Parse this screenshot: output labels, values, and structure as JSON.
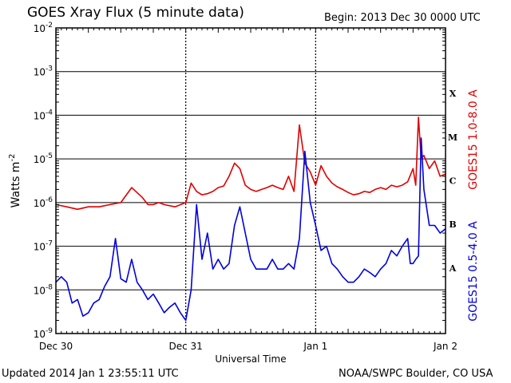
{
  "header": {
    "title": "GOES Xray Flux (5 minute data)",
    "begin": "Begin:  2013 Dec 30 0000 UTC"
  },
  "footer": {
    "updated": "Updated 2014 Jan  1 23:55:11 UTC",
    "credit": "NOAA/SWPC Boulder, CO USA"
  },
  "chart_data": {
    "type": "line",
    "xlabel": "Universal Time",
    "ylabel_base": "Watts m",
    "ylabel_exp": "-2",
    "y_scale": "log",
    "ylim": [
      1e-09,
      0.01
    ],
    "xlim": [
      0,
      72
    ],
    "x_unit": "hours since 2013 Dec 30 0000 UTC",
    "x_ticks": [
      {
        "value": 0,
        "label": "Dec 30"
      },
      {
        "value": 24,
        "label": "Dec 31"
      },
      {
        "value": 48,
        "label": "Jan 1"
      },
      {
        "value": 72,
        "label": "Jan 2"
      }
    ],
    "y_ticks": [
      {
        "exp": -9,
        "base": "10",
        "sup": "-9"
      },
      {
        "exp": -8,
        "base": "10",
        "sup": "-8"
      },
      {
        "exp": -7,
        "base": "10",
        "sup": "-7"
      },
      {
        "exp": -6,
        "base": "10",
        "sup": "-6"
      },
      {
        "exp": -5,
        "base": "10",
        "sup": "-5"
      },
      {
        "exp": -4,
        "base": "10",
        "sup": "-4"
      },
      {
        "exp": -3,
        "base": "10",
        "sup": "-3"
      },
      {
        "exp": -2,
        "base": "10",
        "sup": "-2"
      }
    ],
    "flare_classes": [
      {
        "label": "A",
        "exp": -7.5
      },
      {
        "label": "B",
        "exp": -6.5
      },
      {
        "label": "C",
        "exp": -5.5
      },
      {
        "label": "M",
        "exp": -4.5
      },
      {
        "label": "X",
        "exp": -3.5
      }
    ],
    "grid": "horizontal lines at each decade; dotted vertical lines at day boundaries",
    "series": [
      {
        "name": "GOES15 1.0-8.0 A",
        "color": "#e00000",
        "x": [
          0,
          2,
          4,
          6,
          8,
          10,
          12,
          14,
          16,
          17,
          18,
          19,
          20,
          22,
          24,
          25,
          26,
          27,
          28,
          29,
          30,
          31,
          32,
          33,
          34,
          35,
          36,
          37,
          38,
          39,
          40,
          41,
          42,
          43,
          44,
          45,
          46,
          47,
          48,
          49,
          50,
          51,
          52,
          53,
          54,
          55,
          56,
          57,
          58,
          59,
          60,
          61,
          62,
          63,
          64,
          65,
          66,
          66.5,
          67,
          67.5,
          68,
          69,
          70,
          71,
          72
        ],
        "values": [
          9e-07,
          8e-07,
          7e-07,
          8e-07,
          8e-07,
          9e-07,
          1e-06,
          2.2e-06,
          1.3e-06,
          9e-07,
          9e-07,
          1e-06,
          9e-07,
          8e-07,
          1e-06,
          2.8e-06,
          1.8e-06,
          1.5e-06,
          1.6e-06,
          1.8e-06,
          2.2e-06,
          2.4e-06,
          4e-06,
          8e-06,
          6e-06,
          2.5e-06,
          2e-06,
          1.8e-06,
          2e-06,
          2.2e-06,
          2.5e-06,
          2.2e-06,
          2e-06,
          4e-06,
          1.8e-06,
          6e-05,
          8e-06,
          5e-06,
          2.5e-06,
          7e-06,
          4e-06,
          2.8e-06,
          2.3e-06,
          2e-06,
          1.7e-06,
          1.5e-06,
          1.6e-06,
          1.8e-06,
          1.7e-06,
          2e-06,
          2.2e-06,
          2e-06,
          2.5e-06,
          2.3e-06,
          2.5e-06,
          3e-06,
          6e-06,
          2.5e-06,
          9e-05,
          1e-05,
          1.2e-05,
          6e-06,
          9e-06,
          4e-06,
          4.5e-06
        ]
      },
      {
        "name": "GOES15 0.5-4.0 A",
        "color": "#0000e0",
        "x": [
          0,
          1,
          2,
          3,
          4,
          5,
          6,
          7,
          8,
          9,
          10,
          11,
          12,
          13,
          14,
          15,
          16,
          17,
          18,
          19,
          20,
          21,
          22,
          23,
          24,
          25,
          26,
          27,
          28,
          29,
          30,
          31,
          32,
          33,
          34,
          35,
          36,
          37,
          38,
          39,
          40,
          41,
          42,
          43,
          44,
          45,
          46,
          47,
          48,
          49,
          50,
          51,
          52,
          53,
          54,
          55,
          56,
          57,
          58,
          59,
          60,
          61,
          62,
          63,
          64,
          65,
          65.5,
          66,
          66.5,
          67,
          67.5,
          68,
          69,
          70,
          71,
          72
        ],
        "values": [
          1.5e-08,
          2e-08,
          1.5e-08,
          5e-09,
          6e-09,
          2.5e-09,
          3e-09,
          5e-09,
          6e-09,
          1.2e-08,
          2e-08,
          1.5e-07,
          1.8e-08,
          1.5e-08,
          5e-08,
          1.5e-08,
          1e-08,
          6e-09,
          8e-09,
          5e-09,
          3e-09,
          4e-09,
          5e-09,
          3e-09,
          2e-09,
          1e-08,
          9e-07,
          5e-08,
          2e-07,
          3e-08,
          5e-08,
          3e-08,
          4e-08,
          3e-07,
          8e-07,
          2e-07,
          5e-08,
          3e-08,
          3e-08,
          3e-08,
          5e-08,
          3e-08,
          3e-08,
          4e-08,
          3e-08,
          1.5e-07,
          1.5e-05,
          1e-06,
          3e-07,
          8e-08,
          1e-07,
          4e-08,
          3e-08,
          2e-08,
          1.5e-08,
          1.5e-08,
          2e-08,
          3e-08,
          2.5e-08,
          2e-08,
          3e-08,
          4e-08,
          8e-08,
          6e-08,
          1e-07,
          1.5e-07,
          4e-08,
          4e-08,
          5e-08,
          6e-08,
          3e-05,
          2e-06,
          3e-07,
          3e-07,
          2e-07,
          2.5e-07
        ]
      }
    ]
  }
}
